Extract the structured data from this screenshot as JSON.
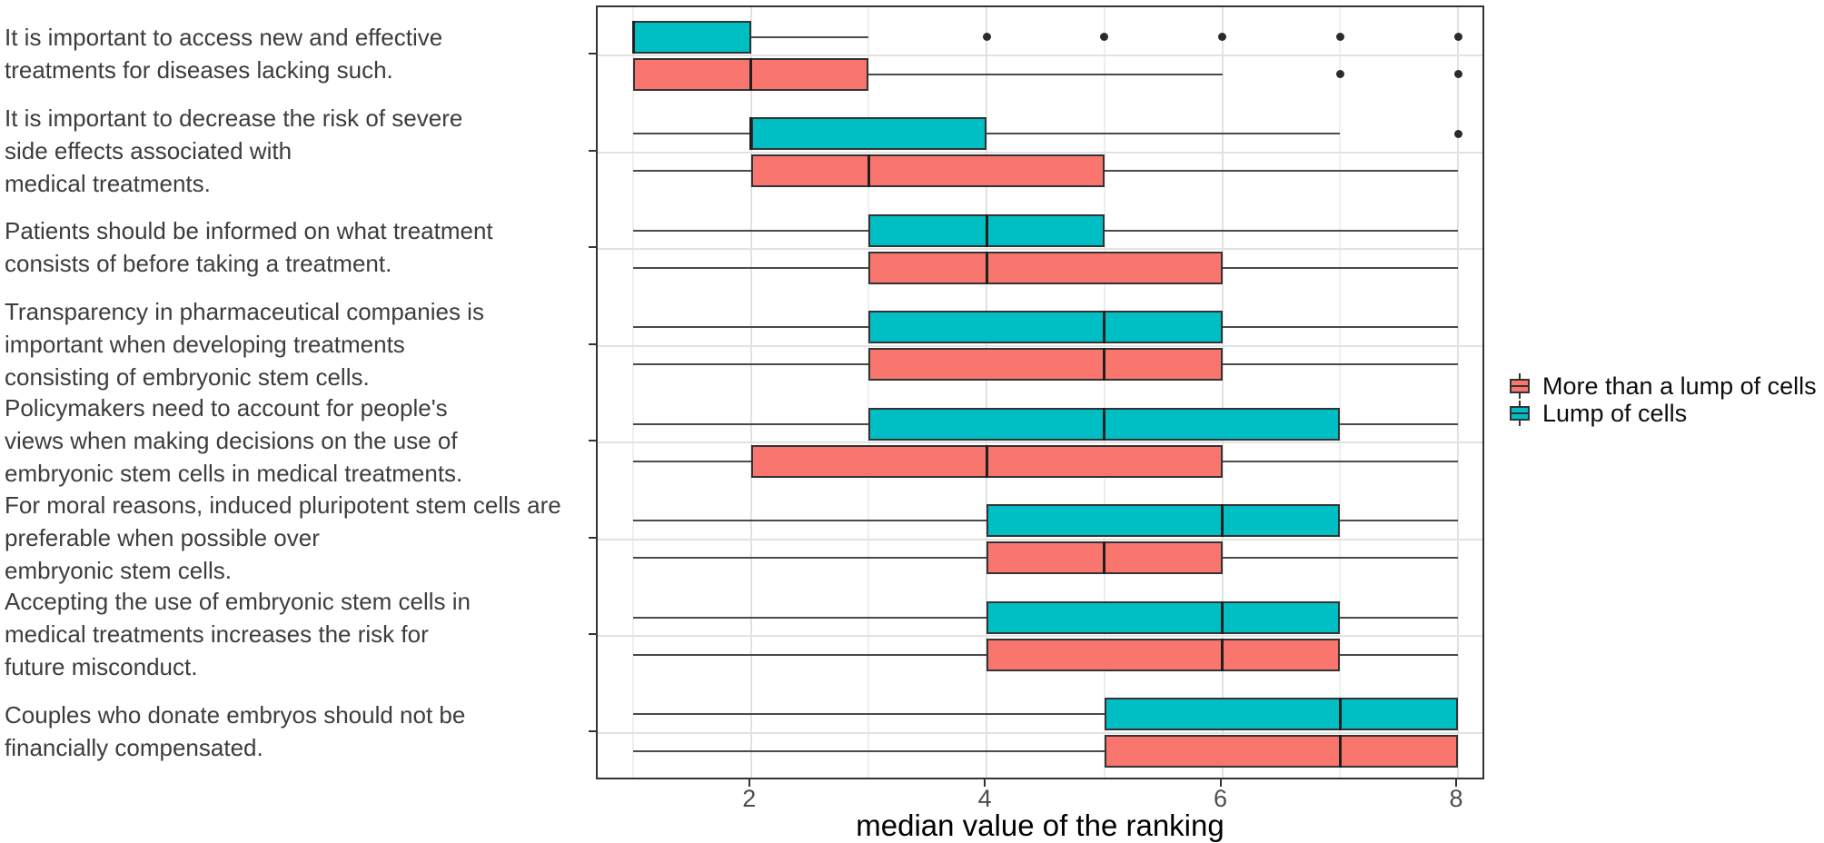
{
  "figure": {
    "x_axis_title": "median value of the ranking",
    "x_tick_labels": [
      "2",
      "4",
      "6",
      "8"
    ]
  },
  "legend": {
    "items": [
      {
        "label": "More than a lump of cells",
        "color": "#F8766D"
      },
      {
        "label": "Lump of cells",
        "color": "#00BFC4"
      }
    ]
  },
  "colors": {
    "teal_fill": "#00BFC4",
    "salmon_fill": "#F8766D",
    "box_stroke": "#333333",
    "whisker": "#4a4a4a",
    "outlier": "#2b2b2b",
    "grid_major": "#e2e2e2",
    "grid_minor": "#efefef",
    "panel_border": "#333333"
  },
  "chart_data": {
    "type": "boxplot",
    "orientation": "horizontal",
    "xlabel": "median value of the ranking",
    "xlim": [
      1,
      8
    ],
    "x_breaks": [
      2,
      4,
      6,
      8
    ],
    "x_gridlines_at": [
      1,
      2,
      3,
      4,
      5,
      6,
      7,
      8
    ],
    "grid": true,
    "legend_position": "right",
    "categories": [
      "It is important to access new and effective\ntreatments for diseases lacking such.",
      "It is important to decrease the risk of severe\nside effects associated with\nmedical treatments.",
      "Patients should be informed on what treatment\nconsists of before taking a treatment.",
      "Transparency in pharmaceutical companies is\nimportant when developing treatments\nconsisting of embryonic stem cells.",
      "Policymakers need to account for people's\nviews when making decisions on the use of\nembryonic stem cells in medical treatments.",
      "For moral reasons, induced pluripotent stem cells are\npreferable when possible over\nembryonic stem cells.",
      "Accepting the use of embryonic stem cells in\nmedical treatments increases the risk for\nfuture misconduct.",
      "Couples who donate embryos should not be\nfinancially compensated."
    ],
    "series": [
      {
        "name": "Lump of cells",
        "color": "#00BFC4",
        "stats": [
          {
            "whisker_low": 1,
            "q1": 1,
            "median": 1,
            "q3": 2,
            "whisker_high": 3,
            "outliers": [
              4,
              5,
              6,
              7,
              8
            ]
          },
          {
            "whisker_low": 1,
            "q1": 2,
            "median": 2,
            "q3": 4,
            "whisker_high": 7,
            "outliers": [
              8
            ]
          },
          {
            "whisker_low": 1,
            "q1": 3,
            "median": 4,
            "q3": 5,
            "whisker_high": 8,
            "outliers": []
          },
          {
            "whisker_low": 1,
            "q1": 3,
            "median": 5,
            "q3": 6,
            "whisker_high": 8,
            "outliers": []
          },
          {
            "whisker_low": 1,
            "q1": 3,
            "median": 5,
            "q3": 7,
            "whisker_high": 8,
            "outliers": []
          },
          {
            "whisker_low": 1,
            "q1": 4,
            "median": 6,
            "q3": 7,
            "whisker_high": 8,
            "outliers": []
          },
          {
            "whisker_low": 1,
            "q1": 4,
            "median": 6,
            "q3": 7,
            "whisker_high": 8,
            "outliers": []
          },
          {
            "whisker_low": 1,
            "q1": 5,
            "median": 7,
            "q3": 8,
            "whisker_high": 8,
            "outliers": []
          }
        ]
      },
      {
        "name": "More than a lump of cells",
        "color": "#F8766D",
        "stats": [
          {
            "whisker_low": 1,
            "q1": 1,
            "median": 2,
            "q3": 3,
            "whisker_high": 6,
            "outliers": [
              7,
              8
            ]
          },
          {
            "whisker_low": 1,
            "q1": 2,
            "median": 3,
            "q3": 5,
            "whisker_high": 8,
            "outliers": []
          },
          {
            "whisker_low": 1,
            "q1": 3,
            "median": 4,
            "q3": 6,
            "whisker_high": 8,
            "outliers": []
          },
          {
            "whisker_low": 1,
            "q1": 3,
            "median": 5,
            "q3": 6,
            "whisker_high": 8,
            "outliers": []
          },
          {
            "whisker_low": 1,
            "q1": 2,
            "median": 4,
            "q3": 6,
            "whisker_high": 8,
            "outliers": []
          },
          {
            "whisker_low": 1,
            "q1": 4,
            "median": 5,
            "q3": 6,
            "whisker_high": 8,
            "outliers": []
          },
          {
            "whisker_low": 1,
            "q1": 4,
            "median": 6,
            "q3": 7,
            "whisker_high": 8,
            "outliers": []
          },
          {
            "whisker_low": 1,
            "q1": 5,
            "median": 7,
            "q3": 8,
            "whisker_high": 8,
            "outliers": []
          }
        ]
      }
    ]
  }
}
